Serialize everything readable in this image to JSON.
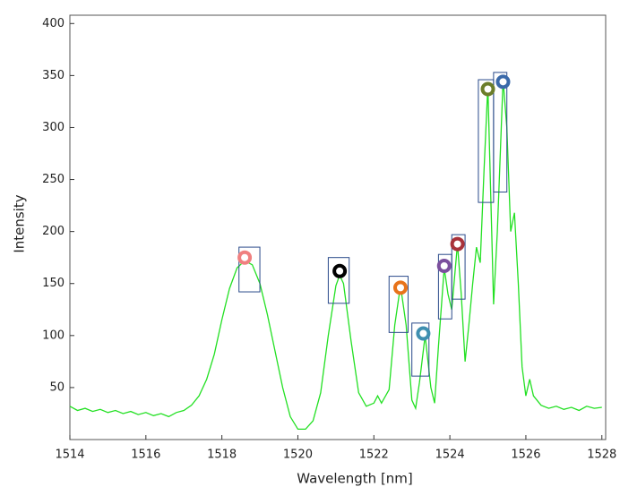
{
  "chart_data": {
    "type": "line",
    "xlabel": "Wavelength [nm]",
    "ylabel": "Intensity",
    "xlim": [
      1514,
      1528.1
    ],
    "ylim": [
      0,
      408
    ],
    "xticks": [
      1514,
      1516,
      1518,
      1520,
      1522,
      1524,
      1526,
      1528
    ],
    "yticks": [
      50,
      100,
      150,
      200,
      250,
      300,
      350,
      400
    ],
    "x": [
      1514,
      1514.2,
      1514.4,
      1514.6,
      1514.8,
      1515,
      1515.2,
      1515.4,
      1515.6,
      1515.8,
      1516,
      1516.2,
      1516.4,
      1516.6,
      1516.8,
      1517,
      1517.2,
      1517.4,
      1517.6,
      1517.8,
      1518,
      1518.2,
      1518.4,
      1518.6,
      1518.8,
      1519,
      1519.2,
      1519.4,
      1519.6,
      1519.8,
      1520,
      1520.2,
      1520.4,
      1520.6,
      1520.8,
      1521,
      1521.1,
      1521.2,
      1521.4,
      1521.6,
      1521.8,
      1522,
      1522.1,
      1522.2,
      1522.4,
      1522.55,
      1522.7,
      1522.85,
      1523,
      1523.1,
      1523.2,
      1523.35,
      1523.5,
      1523.6,
      1523.7,
      1523.85,
      1523.95,
      1524.05,
      1524.2,
      1524.3,
      1524.4,
      1524.5,
      1524.6,
      1524.7,
      1524.8,
      1524.9,
      1525,
      1525.1,
      1525.15,
      1525.25,
      1525.4,
      1525.5,
      1525.6,
      1525.7,
      1525.8,
      1525.9,
      1526,
      1526.1,
      1526.2,
      1526.4,
      1526.6,
      1526.8,
      1527,
      1527.2,
      1527.4,
      1527.6,
      1527.8,
      1528
    ],
    "series": [
      {
        "color": "#22e022",
        "values": [
          32,
          28,
          30,
          27,
          29,
          26,
          28,
          25,
          27,
          24,
          26,
          23,
          25,
          22,
          26,
          28,
          33,
          42,
          58,
          82,
          115,
          145,
          165,
          172,
          168,
          150,
          120,
          85,
          50,
          22,
          10,
          10,
          18,
          45,
          100,
          148,
          158,
          150,
          95,
          45,
          32,
          35,
          42,
          35,
          48,
          110,
          148,
          110,
          38,
          30,
          55,
          100,
          50,
          35,
          90,
          165,
          140,
          125,
          188,
          140,
          75,
          110,
          150,
          185,
          170,
          260,
          340,
          200,
          130,
          200,
          346,
          300,
          200,
          218,
          150,
          70,
          42,
          58,
          42,
          33,
          30,
          32,
          29,
          31,
          28,
          32,
          30,
          31
        ]
      }
    ],
    "peaks": {
      "x": [
        1518.6,
        1521.1,
        1522.7,
        1523.3,
        1523.85,
        1524.2,
        1525.0,
        1525.4
      ],
      "values": [
        175,
        162,
        146,
        102,
        167,
        188,
        337,
        344
      ],
      "colors": [
        "#f08080",
        "#000000",
        "#e8731a",
        "#3f8fb0",
        "#7b4f9d",
        "#a8323a",
        "#6b7d2a",
        "#3b6aaa"
      ]
    },
    "boxes": [
      {
        "x": [
          1518.45,
          1519.0
        ],
        "y": [
          142,
          185
        ]
      },
      {
        "x": [
          1520.8,
          1521.35
        ],
        "y": [
          131,
          175
        ]
      },
      {
        "x": [
          1522.4,
          1522.9
        ],
        "y": [
          103,
          157
        ]
      },
      {
        "x": [
          1523.0,
          1523.45
        ],
        "y": [
          61,
          112
        ]
      },
      {
        "x": [
          1523.7,
          1524.05
        ],
        "y": [
          116,
          178
        ]
      },
      {
        "x": [
          1524.05,
          1524.4
        ],
        "y": [
          135,
          197
        ]
      },
      {
        "x": [
          1524.75,
          1525.15
        ],
        "y": [
          228,
          346
        ]
      },
      {
        "x": [
          1525.15,
          1525.5
        ],
        "y": [
          238,
          353
        ]
      }
    ],
    "box_color": "#2a4a8a"
  }
}
